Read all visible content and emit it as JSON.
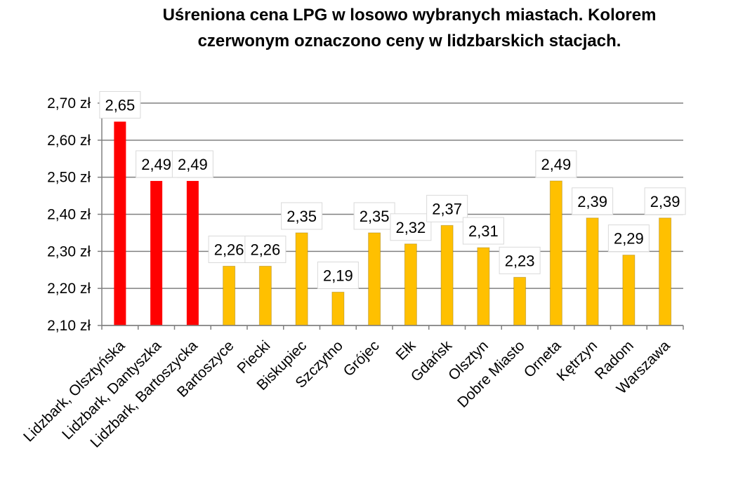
{
  "chart_data": {
    "type": "bar",
    "title_lines": [
      "Uśreniona cena LPG w losowo wybranych miastach. Kolorem",
      "czerwonym oznaczono ceny w lidzbarskich stacjach."
    ],
    "categories": [
      "Lidzbark, Olsztyńska",
      "Lidzbark, Dantyszka",
      "Lidzbark, Bartoszycka",
      "Bartoszyce",
      "Piecki",
      "Biskupiec",
      "Szczytno",
      "Grójec",
      "Ełk",
      "Gdańsk",
      "Olsztyn",
      "Dobre Miasto",
      "Orneta",
      "Kętrzyn",
      "Radom",
      "Warszawa"
    ],
    "values": [
      2.65,
      2.49,
      2.49,
      2.26,
      2.26,
      2.35,
      2.19,
      2.35,
      2.32,
      2.37,
      2.31,
      2.23,
      2.49,
      2.39,
      2.29,
      2.39
    ],
    "data_labels": [
      "2,65",
      "2,49",
      "2,49",
      "2,26",
      "2,26",
      "2,35",
      "2,19",
      "2,35",
      "2,32",
      "2,37",
      "2,31",
      "2,23",
      "2,49",
      "2,39",
      "2,29",
      "2,39"
    ],
    "highlight": [
      true,
      true,
      true,
      false,
      false,
      false,
      false,
      false,
      false,
      false,
      false,
      false,
      false,
      false,
      false,
      false
    ],
    "ylim": [
      2.1,
      2.7
    ],
    "yticks": [
      2.1,
      2.2,
      2.3,
      2.4,
      2.5,
      2.6,
      2.7
    ],
    "ytick_labels": [
      "2,10 zł",
      "2,20 zł",
      "2,30 zł",
      "2,40 zł",
      "2,50 zł",
      "2,60 zł",
      "2,70 zł"
    ],
    "grid": true,
    "colors": {
      "highlight": "#ff0000",
      "default": "#ffc000",
      "grid": "#808080"
    }
  }
}
